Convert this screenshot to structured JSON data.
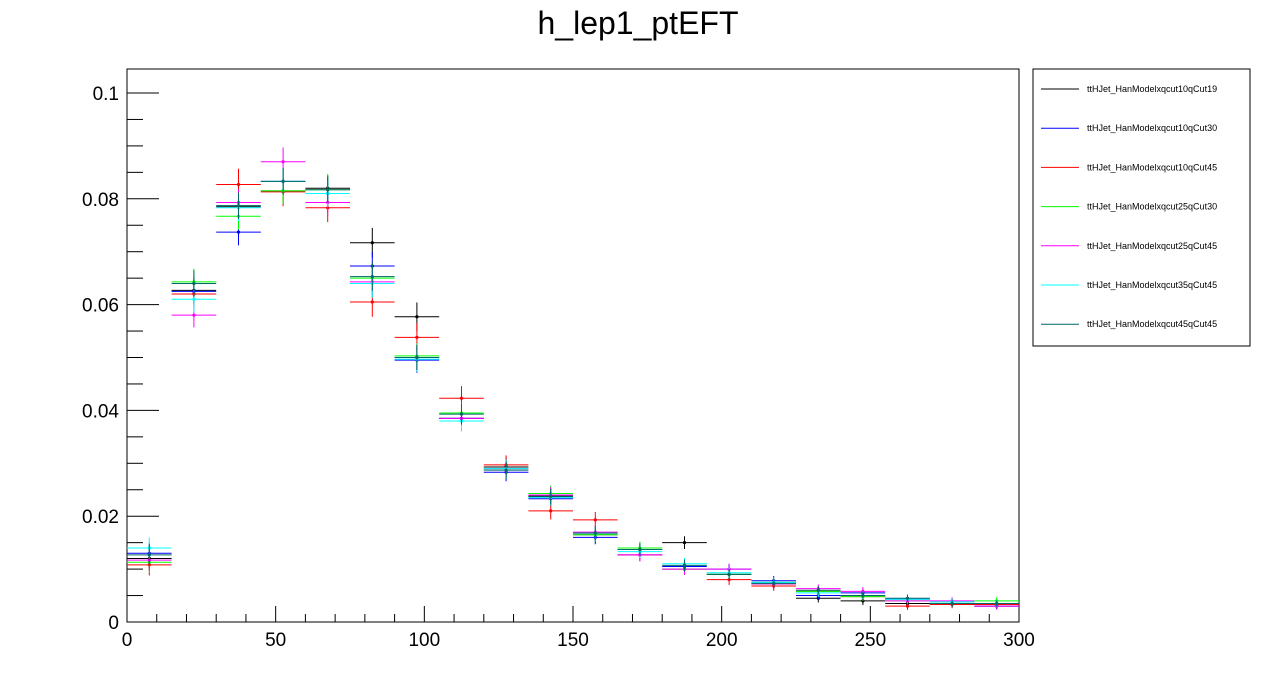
{
  "chart_data": {
    "type": "line",
    "title": "h_lep1_ptEFT",
    "xlabel": "",
    "ylabel": "",
    "xlim": [
      0,
      300
    ],
    "ylim": [
      0,
      0.105
    ],
    "x_ticks": [
      "0",
      "50",
      "100",
      "150",
      "200",
      "250",
      "300"
    ],
    "y_ticks": [
      "0",
      "0.02",
      "0.04",
      "0.06",
      "0.08",
      "0.1"
    ],
    "x_tick_values": [
      0,
      50,
      100,
      150,
      200,
      250,
      300
    ],
    "y_tick_values": [
      0,
      0.02,
      0.04,
      0.06,
      0.08,
      0.1
    ],
    "bin_width": 15,
    "bin_centers": [
      7.5,
      22.5,
      37.5,
      52.5,
      67.5,
      82.5,
      97.5,
      112.5,
      127.5,
      142.5,
      157.5,
      172.5,
      187.5,
      202.5,
      217.5,
      232.5,
      247.5,
      262.5,
      277.5,
      292.5
    ],
    "grid": false,
    "legend_position": "right",
    "series": [
      {
        "name": "ttHJet_HanModelxqcut10qCut19",
        "color": "#000000",
        "values": [
          0.012,
          0.0627,
          0.0785,
          0.0815,
          0.082,
          0.0717,
          0.0577,
          0.0385,
          0.0293,
          0.0238,
          0.0165,
          0.0137,
          0.015,
          0.009,
          0.0072,
          0.0045,
          0.004,
          0.0035,
          0.0035,
          0.003
        ],
        "errors": [
          0.002,
          0.0025,
          0.0025,
          0.0025,
          0.0025,
          0.0028,
          0.0027,
          0.002,
          0.0018,
          0.0015,
          0.0013,
          0.0012,
          0.0012,
          0.001,
          0.0009,
          0.0008,
          0.0008,
          0.0007,
          0.0007,
          0.0006
        ]
      },
      {
        "name": "ttHJet_HanModelxqcut10qCut30",
        "color": "#0000ff",
        "values": [
          0.013,
          0.0625,
          0.0737,
          0.0833,
          0.081,
          0.0673,
          0.0495,
          0.0385,
          0.0283,
          0.0233,
          0.016,
          0.0127,
          0.0105,
          0.01,
          0.0078,
          0.005,
          0.0055,
          0.0043,
          0.0035,
          0.003
        ],
        "errors": [
          0.002,
          0.0025,
          0.0025,
          0.0025,
          0.0025,
          0.0027,
          0.0024,
          0.002,
          0.0017,
          0.0015,
          0.0013,
          0.0012,
          0.0011,
          0.001,
          0.0009,
          0.0008,
          0.0008,
          0.0007,
          0.0007,
          0.0006
        ]
      },
      {
        "name": "ttHJet_HanModelxqcut10qCut45",
        "color": "#ff0000",
        "values": [
          0.0108,
          0.062,
          0.0827,
          0.0813,
          0.0783,
          0.0605,
          0.0538,
          0.0423,
          0.0297,
          0.021,
          0.0193,
          0.0127,
          0.01,
          0.008,
          0.0068,
          0.0058,
          0.0048,
          0.003,
          0.0033,
          0.0033
        ],
        "errors": [
          0.002,
          0.0025,
          0.003,
          0.0027,
          0.0027,
          0.0028,
          0.0027,
          0.0023,
          0.0018,
          0.0016,
          0.0015,
          0.0012,
          0.0011,
          0.001,
          0.0009,
          0.0008,
          0.0008,
          0.0007,
          0.0007,
          0.0006
        ]
      },
      {
        "name": "ttHJet_HanModelxqcut25qCut30",
        "color": "#00ff00",
        "values": [
          0.0113,
          0.0643,
          0.0767,
          0.0815,
          0.0817,
          0.065,
          0.0503,
          0.0395,
          0.029,
          0.0243,
          0.0165,
          0.014,
          0.01,
          0.009,
          0.0075,
          0.0058,
          0.0048,
          0.004,
          0.0038,
          0.004
        ],
        "errors": [
          0.002,
          0.0025,
          0.0025,
          0.0025,
          0.003,
          0.0028,
          0.0024,
          0.002,
          0.0017,
          0.0015,
          0.0013,
          0.0012,
          0.0011,
          0.001,
          0.0009,
          0.0008,
          0.0008,
          0.0007,
          0.0007,
          0.0007
        ]
      },
      {
        "name": "ttHJet_HanModelxqcut25qCut45",
        "color": "#ff00ff",
        "values": [
          0.0117,
          0.058,
          0.0793,
          0.087,
          0.0793,
          0.0643,
          0.05,
          0.0385,
          0.029,
          0.024,
          0.017,
          0.0127,
          0.01,
          0.01,
          0.0072,
          0.0063,
          0.0058,
          0.004,
          0.004,
          0.003
        ],
        "errors": [
          0.002,
          0.0023,
          0.0025,
          0.0027,
          0.0025,
          0.0027,
          0.0024,
          0.002,
          0.0017,
          0.0015,
          0.0013,
          0.0012,
          0.0011,
          0.001,
          0.0009,
          0.0008,
          0.0008,
          0.0007,
          0.0007,
          0.0006
        ]
      },
      {
        "name": "ttHJet_HanModelxqcut35qCut45",
        "color": "#00ffff",
        "values": [
          0.014,
          0.061,
          0.0783,
          0.0833,
          0.081,
          0.064,
          0.0497,
          0.038,
          0.029,
          0.0235,
          0.0168,
          0.0133,
          0.011,
          0.0093,
          0.0075,
          0.0055,
          0.005,
          0.0043,
          0.0038,
          0.0035
        ],
        "errors": [
          0.002,
          0.0025,
          0.0025,
          0.0025,
          0.0025,
          0.0027,
          0.0024,
          0.002,
          0.0017,
          0.0015,
          0.0013,
          0.0012,
          0.0011,
          0.001,
          0.0009,
          0.0008,
          0.0008,
          0.0007,
          0.0007,
          0.0006
        ]
      },
      {
        "name": "ttHJet_HanModelxqcut45qCut45",
        "color": "#006666",
        "values": [
          0.0127,
          0.064,
          0.0787,
          0.0833,
          0.0817,
          0.0653,
          0.05,
          0.0393,
          0.0287,
          0.0237,
          0.0168,
          0.0137,
          0.0107,
          0.009,
          0.0073,
          0.006,
          0.005,
          0.0045,
          0.0035,
          0.0035
        ],
        "errors": [
          0.002,
          0.0025,
          0.0025,
          0.0025,
          0.0025,
          0.0027,
          0.0024,
          0.002,
          0.0017,
          0.0015,
          0.0013,
          0.0012,
          0.0011,
          0.001,
          0.0009,
          0.0008,
          0.0008,
          0.0007,
          0.0007,
          0.0006
        ]
      }
    ]
  }
}
